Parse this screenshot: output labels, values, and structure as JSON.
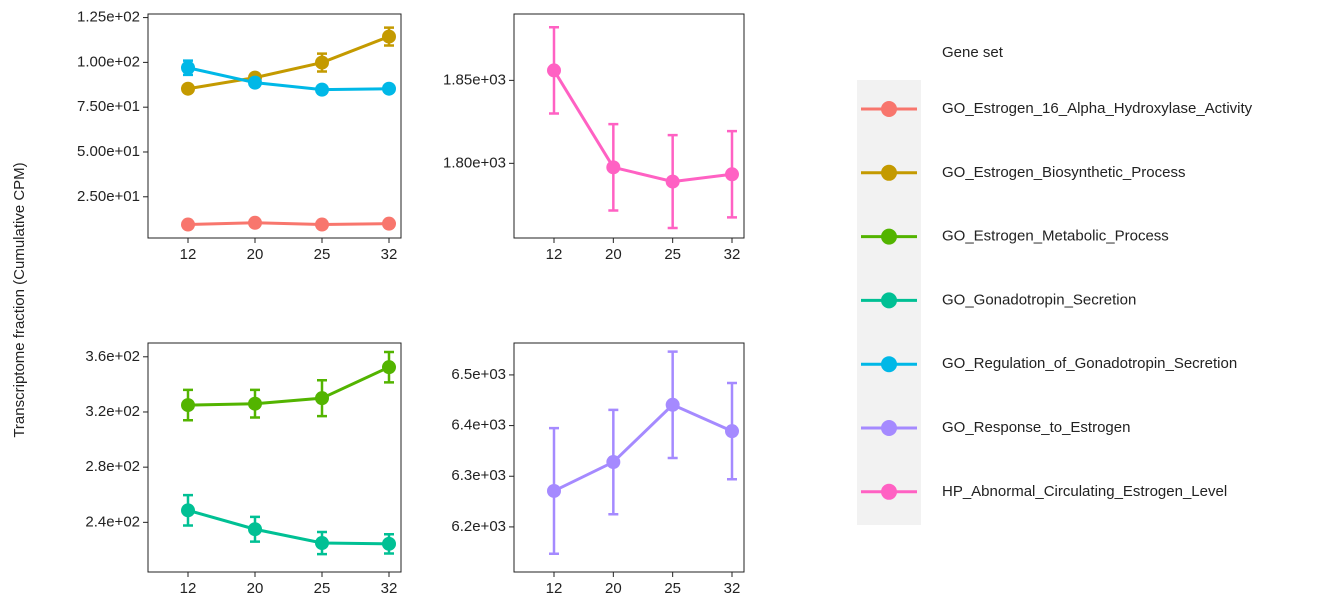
{
  "y_label": "Transcriptome fraction (Cumulative CPM)",
  "legend_title": "Gene set",
  "chart_data": [
    {
      "type": "line",
      "categories": [
        "12",
        "20",
        "25",
        "32"
      ],
      "ylim": [
        2,
        127
      ],
      "yticks": [
        {
          "value": 25,
          "label": "2.50e+01"
        },
        {
          "value": 50,
          "label": "5.00e+01"
        },
        {
          "value": 75,
          "label": "7.50e+01"
        },
        {
          "value": 100,
          "label": "1.00e+02"
        },
        {
          "value": 125,
          "label": "1.25e+02"
        }
      ],
      "series": [
        {
          "name": "GO_Estrogen_16_Alpha_Hydroxylase_Activity",
          "color": "#F8766D",
          "values": [
            9.5,
            10.5,
            9.5,
            10
          ],
          "errors": [
            0.5,
            0.5,
            0.5,
            0.5
          ]
        },
        {
          "name": "GO_Estrogen_Biosynthetic_Process",
          "color": "#C49A00",
          "values": [
            85.3,
            91.5,
            99.9,
            114.4
          ],
          "errors": [
            2,
            2,
            5,
            5
          ]
        },
        {
          "name": "GO_Regulation_of_Gonadotropin_Secretion",
          "color": "#00B8E7",
          "values": [
            97,
            88.7,
            84.8,
            85.3
          ],
          "errors": [
            4,
            2,
            2,
            2
          ]
        }
      ]
    },
    {
      "type": "line",
      "categories": [
        "12",
        "20",
        "25",
        "32"
      ],
      "ylim": [
        1755,
        1890
      ],
      "yticks": [
        {
          "value": 1800,
          "label": "1.80e+03"
        },
        {
          "value": 1850,
          "label": "1.85e+03"
        }
      ],
      "series": [
        {
          "name": "HP_Abnormal_Circulating_Estrogen_Level",
          "color": "#FF61C3",
          "values": [
            1856,
            1797.6,
            1789,
            1793.4
          ],
          "errors": [
            26,
            26,
            28,
            26
          ]
        }
      ]
    },
    {
      "type": "line",
      "categories": [
        "12",
        "20",
        "25",
        "32"
      ],
      "ylim": [
        204,
        370
      ],
      "yticks": [
        {
          "value": 240,
          "label": "2.4e+02"
        },
        {
          "value": 280,
          "label": "2.8e+02"
        },
        {
          "value": 320,
          "label": "3.2e+02"
        },
        {
          "value": 360,
          "label": "3.6e+02"
        }
      ],
      "series": [
        {
          "name": "GO_Estrogen_Metabolic_Process",
          "color": "#53B400",
          "values": [
            325,
            326,
            330,
            352.5
          ],
          "errors": [
            11,
            10,
            13,
            11
          ]
        },
        {
          "name": "GO_Gonadotropin_Secretion",
          "color": "#00C094",
          "values": [
            248.7,
            235,
            225,
            224.4
          ],
          "errors": [
            11,
            9,
            8,
            7
          ]
        }
      ]
    },
    {
      "type": "line",
      "categories": [
        "12",
        "20",
        "25",
        "32"
      ],
      "ylim": [
        6111,
        6563
      ],
      "yticks": [
        {
          "value": 6200,
          "label": "6.2e+03"
        },
        {
          "value": 6300,
          "label": "6.3e+03"
        },
        {
          "value": 6400,
          "label": "6.4e+03"
        },
        {
          "value": 6500,
          "label": "6.5e+03"
        }
      ],
      "series": [
        {
          "name": "GO_Response_to_Estrogen",
          "color": "#A58AFF",
          "values": [
            6271,
            6328,
            6441,
            6389
          ],
          "errors": [
            124,
            103,
            105,
            95
          ]
        }
      ]
    }
  ]
}
